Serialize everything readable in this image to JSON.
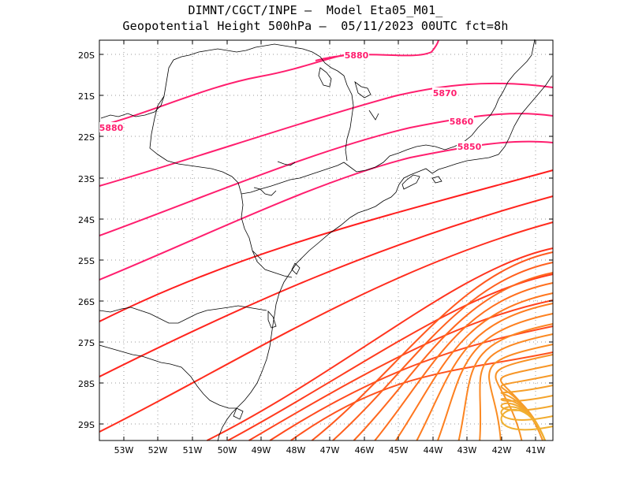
{
  "title_line1": "DIMNT/CGCT/INPE —  Model Eta05_M01_",
  "title_line2": "Geopotential Height 500hPa —  05/11/2023 00UTC fct=8h",
  "lat_ticks": [
    "20S",
    "21S",
    "22S",
    "23S",
    "24S",
    "25S",
    "26S",
    "27S",
    "28S",
    "29S"
  ],
  "lon_ticks": [
    "53W",
    "52W",
    "51W",
    "50W",
    "49W",
    "48W",
    "47W",
    "46W",
    "45W",
    "44W",
    "43W",
    "42W",
    "41W"
  ],
  "contour_labels": [
    "5880",
    "5880",
    "5870",
    "5860",
    "5850"
  ],
  "colors": {
    "label": "#ff1e6e",
    "coastline": "#000000",
    "grid": "#9a9a9a"
  }
}
